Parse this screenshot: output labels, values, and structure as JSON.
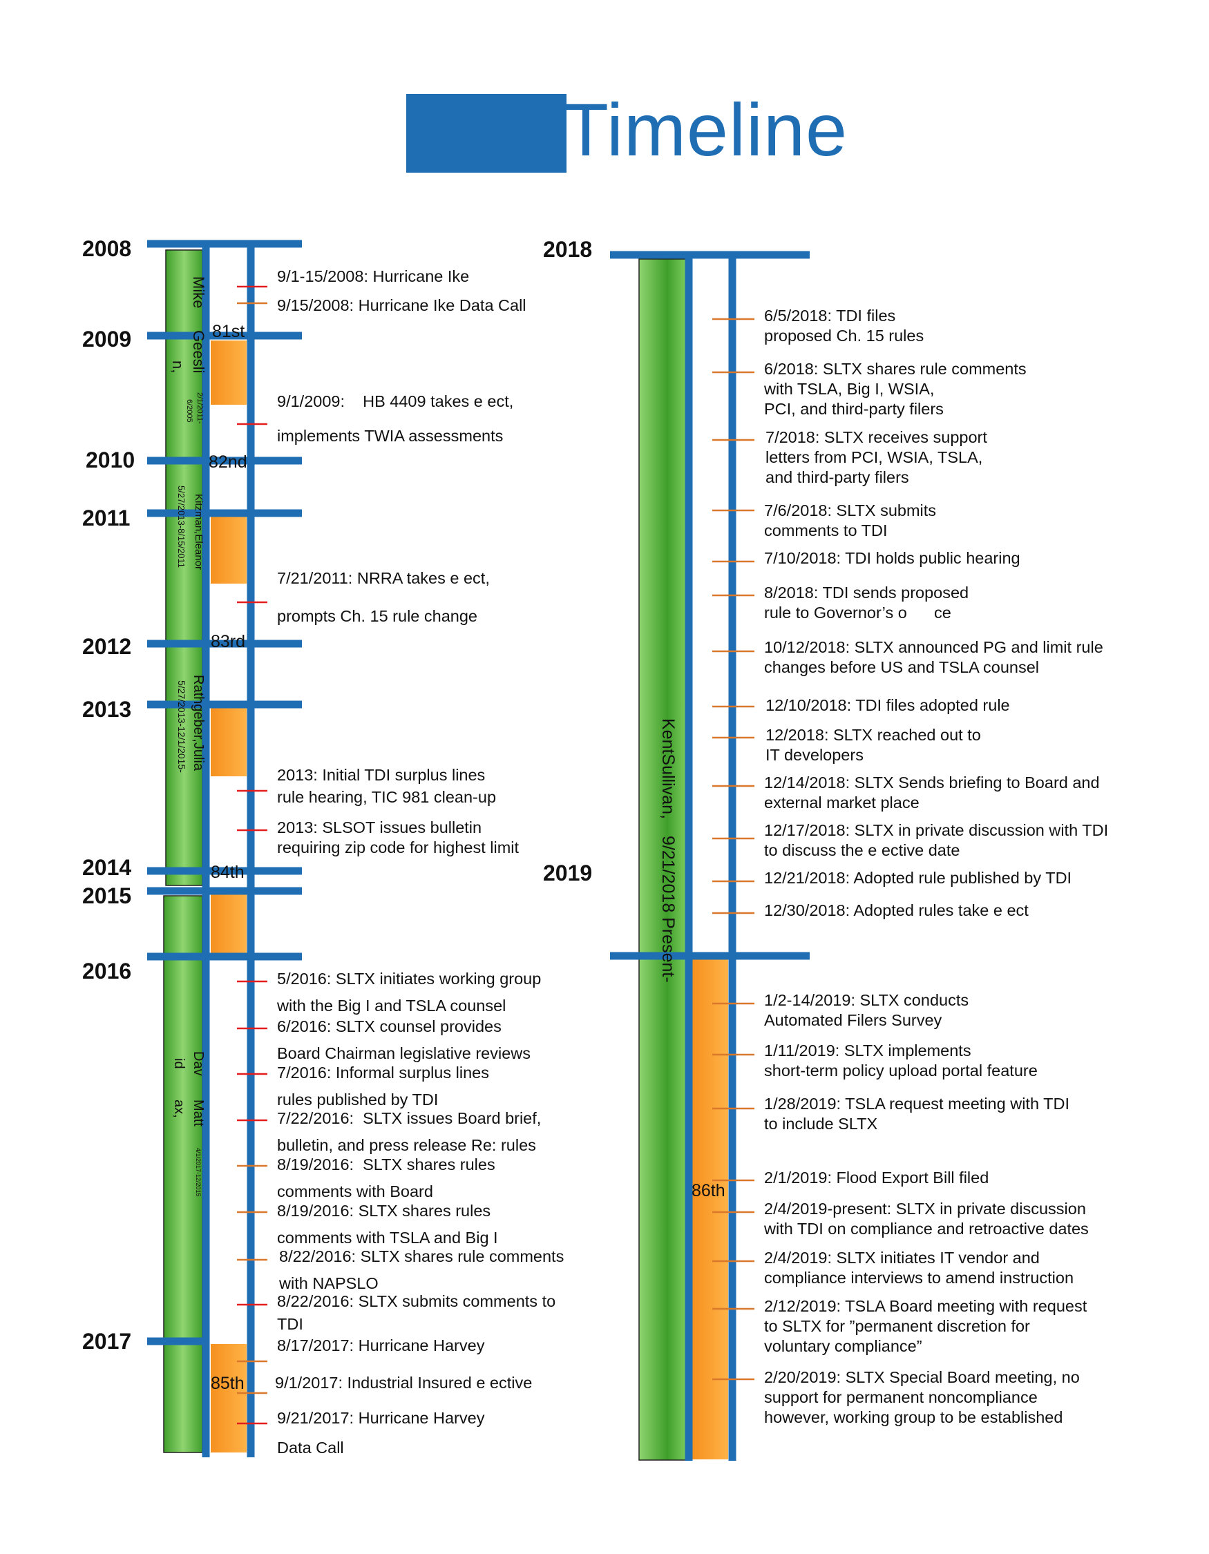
{
  "header": {
    "title": "Timeline"
  },
  "colors": {
    "accent_blue": "#1f6db2",
    "leader_green": "#43a32a",
    "session_orange": "#f5901e",
    "tick_red": "#e31e1e",
    "tick_orange": "#d9772a"
  },
  "years_left": [
    "2008",
    "2009",
    "2010",
    "2011",
    "2012",
    "2013",
    "2014",
    "2015",
    "2016",
    "2017"
  ],
  "years_right": [
    "2018",
    "2019"
  ],
  "sessions": [
    "81st",
    "82nd",
    "83rd",
    "84th",
    "85th",
    "86th"
  ],
  "leaders": {
    "mike_geeslin": {
      "name_lines": [
        "Mike",
        "Geesli",
        "n,"
      ],
      "dates": [
        "2/1/2011-",
        "6/2005"
      ]
    },
    "eleanor_kitzman": {
      "name": "Kitzman,Eleanor",
      "dates": "5/27/2013-8/15/2011"
    },
    "julia_rathgeber": {
      "name": "Rathgeber,Julia",
      "dates": "5/27/2013-12/1/2015-"
    },
    "david_mattax": {
      "name_lines": [
        "Dav",
        "id",
        "Matt",
        "ax,"
      ],
      "dates": "4/1/2017-12/2015"
    },
    "kent_sullivan": {
      "name": "KentSullivan,",
      "dates": "9/21/2018 Present-"
    }
  },
  "events_left": [
    {
      "lines": [
        "9/1-15/2008: Hurricane Ike"
      ]
    },
    {
      "lines": [
        "9/15/2008: Hurricane Ike Data Call"
      ]
    },
    {
      "lines": [
        "9/1/2009:    HB 4409 takes e ect,",
        "",
        "implements TWIA assessments"
      ]
    },
    {
      "lines": [
        "7/21/2011: NRRA takes e ect,",
        "",
        "prompts Ch. 15 rule change"
      ]
    },
    {
      "lines": [
        "2013: Initial TDI surplus lines",
        "rule hearing, TIC 981 clean-up"
      ]
    },
    {
      "lines": [
        "2013: SLSOT issues bulletin",
        "requiring zip code for highest limit"
      ]
    },
    {
      "lines": [
        "5/2016: SLTX initiates working group",
        "with the Big I and TSLA counsel"
      ]
    },
    {
      "lines": [
        "6/2016: SLTX counsel provides",
        "Board Chairman legislative reviews"
      ]
    },
    {
      "lines": [
        "7/2016: Informal surplus lines",
        "rules published by TDI"
      ]
    },
    {
      "lines": [
        "7/22/2016:  SLTX issues Board brief,",
        "bulletin, and press release Re: rules"
      ]
    },
    {
      "lines": [
        "8/19/2016:  SLTX shares rules",
        "comments with Board"
      ]
    },
    {
      "lines": [
        "8/19/2016: SLTX shares rules",
        "comments with TSLA and Big I"
      ]
    },
    {
      "lines": [
        "8/22/2016: SLTX shares rule comments",
        "with NAPSLO"
      ]
    },
    {
      "lines": [
        "8/22/2016: SLTX submits comments to",
        "TDI"
      ]
    },
    {
      "lines": [
        "8/17/2017: Hurricane Harvey"
      ]
    },
    {
      "lines": [
        "9/1/2017: Industrial Insured e ective"
      ]
    },
    {
      "lines": [
        "9/21/2017: Hurricane Harvey",
        "Data Call"
      ]
    }
  ],
  "events_right": [
    {
      "lines": [
        "6/5/2018: TDI files",
        "proposed Ch. 15 rules"
      ]
    },
    {
      "lines": [
        "6/2018: SLTX shares rule comments",
        "with TSLA, Big I, WSIA,",
        "PCI, and third-party filers"
      ]
    },
    {
      "lines": [
        "7/2018: SLTX receives support",
        "letters from PCI, WSIA, TSLA,",
        "and third-party filers"
      ]
    },
    {
      "lines": [
        "7/6/2018: SLTX submits",
        "comments to TDI"
      ]
    },
    {
      "lines": [
        "7/10/2018: TDI holds public hearing"
      ]
    },
    {
      "lines": [
        "8/2018: TDI sends proposed",
        "rule to Governor’s o      ce"
      ]
    },
    {
      "lines": [
        "10/12/2018: SLTX announced PG and limit rule",
        "changes before US and TSLA counsel"
      ]
    },
    {
      "lines": [
        "12/10/2018: TDI files adopted rule"
      ]
    },
    {
      "lines": [
        "12/2018: SLTX reached out to",
        "IT developers"
      ]
    },
    {
      "lines": [
        "12/14/2018: SLTX Sends briefing to Board and",
        "external market place"
      ]
    },
    {
      "lines": [
        "12/17/2018: SLTX in private discussion with TDI",
        "to discuss the e ective date"
      ]
    },
    {
      "lines": [
        "12/21/2018: Adopted rule published by TDI"
      ]
    },
    {
      "lines": [
        "12/30/2018: Adopted rules take e ect"
      ]
    },
    {
      "lines": [
        "1/2-14/2019: SLTX conducts",
        "Automated Filers Survey"
      ]
    },
    {
      "lines": [
        "1/11/2019: SLTX implements",
        "short-term policy upload portal feature"
      ]
    },
    {
      "lines": [
        "1/28/2019: TSLA request meeting with TDI",
        "to include SLTX"
      ]
    },
    {
      "lines": [
        "2/1/2019: Flood Export Bill filed"
      ]
    },
    {
      "lines": [
        "2/4/2019-present: SLTX in private discussion",
        "with TDI on compliance and retroactive dates"
      ]
    },
    {
      "lines": [
        "2/4/2019: SLTX initiates IT vendor and",
        "compliance interviews to amend instruction"
      ]
    },
    {
      "lines": [
        "2/12/2019: TSLA Board meeting with request",
        "to SLTX for ”permanent discretion for",
        "voluntary compliance”"
      ]
    },
    {
      "lines": [
        "2/20/2019: SLTX Special Board meeting, no",
        "support for permanent noncompliance",
        "however, working group to be established"
      ]
    }
  ]
}
